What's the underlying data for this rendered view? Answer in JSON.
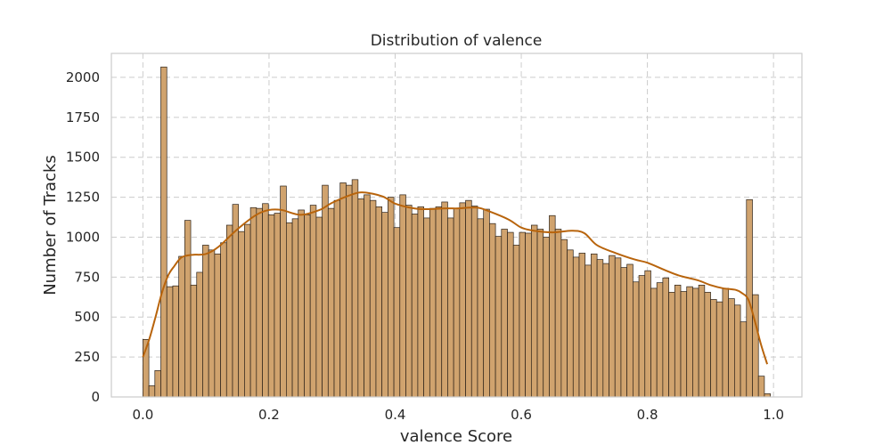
{
  "chart_data": {
    "type": "bar",
    "title": "Distribution of valence",
    "xlabel": "valence Score",
    "ylabel": "Number of Tracks",
    "xlim": [
      -0.05,
      1.045
    ],
    "ylim": [
      0,
      2150
    ],
    "xticks": [
      0.0,
      0.2,
      0.4,
      0.6,
      0.8,
      1.0
    ],
    "xtick_labels": [
      "0.0",
      "0.2",
      "0.4",
      "0.6",
      "0.8",
      "1.0"
    ],
    "yticks": [
      0,
      250,
      500,
      750,
      1000,
      1250,
      1500,
      1750,
      2000
    ],
    "ytick_labels": [
      "0",
      "250",
      "500",
      "750",
      "1000",
      "1250",
      "1500",
      "1750",
      "2000"
    ],
    "grid": true,
    "bin_range": [
      0.0,
      0.995
    ],
    "counts": [
      360,
      70,
      165,
      2065,
      690,
      695,
      880,
      1105,
      700,
      780,
      950,
      920,
      895,
      965,
      1075,
      1205,
      1035,
      1080,
      1185,
      1180,
      1210,
      1140,
      1150,
      1320,
      1090,
      1115,
      1170,
      1140,
      1200,
      1125,
      1325,
      1180,
      1230,
      1340,
      1325,
      1360,
      1240,
      1265,
      1230,
      1190,
      1155,
      1250,
      1060,
      1265,
      1200,
      1145,
      1190,
      1120,
      1180,
      1190,
      1220,
      1120,
      1180,
      1215,
      1230,
      1195,
      1115,
      1175,
      1085,
      1005,
      1050,
      1030,
      950,
      1030,
      1025,
      1075,
      1050,
      1000,
      1135,
      1050,
      985,
      920,
      875,
      900,
      825,
      895,
      860,
      835,
      885,
      870,
      810,
      830,
      720,
      760,
      790,
      680,
      715,
      745,
      655,
      700,
      660,
      690,
      680,
      700,
      655,
      610,
      595,
      680,
      615,
      575,
      470,
      1235,
      640,
      130,
      20
    ],
    "kde": {
      "x": [
        0.0,
        0.01,
        0.02,
        0.03,
        0.04,
        0.05,
        0.06,
        0.07,
        0.08,
        0.1,
        0.12,
        0.15,
        0.18,
        0.2,
        0.22,
        0.25,
        0.28,
        0.3,
        0.33,
        0.35,
        0.38,
        0.4,
        0.43,
        0.45,
        0.48,
        0.5,
        0.53,
        0.55,
        0.58,
        0.6,
        0.62,
        0.65,
        0.68,
        0.7,
        0.72,
        0.75,
        0.78,
        0.8,
        0.83,
        0.85,
        0.88,
        0.9,
        0.92,
        0.94,
        0.95,
        0.96,
        0.97,
        0.98,
        0.99
      ],
      "y": [
        250,
        360,
        500,
        650,
        760,
        820,
        870,
        885,
        890,
        895,
        940,
        1050,
        1140,
        1170,
        1170,
        1140,
        1170,
        1215,
        1265,
        1280,
        1255,
        1210,
        1180,
        1175,
        1180,
        1180,
        1185,
        1160,
        1110,
        1060,
        1040,
        1030,
        1040,
        1025,
        950,
        900,
        860,
        840,
        790,
        760,
        730,
        700,
        680,
        670,
        650,
        610,
        480,
        330,
        205
      ]
    },
    "colors": {
      "bar_fill": "#d0a36e",
      "bar_edge": "#2b2118",
      "kde_line": "#b8640c",
      "grid": "#cccccc",
      "frame": "#cccccc"
    }
  }
}
